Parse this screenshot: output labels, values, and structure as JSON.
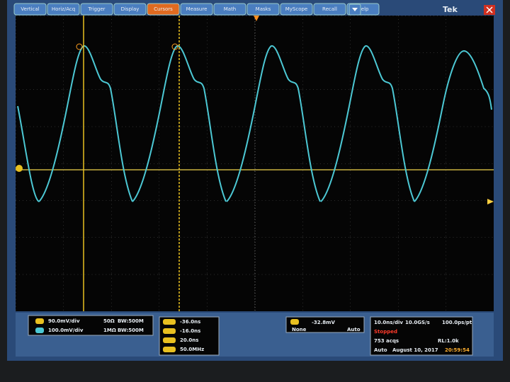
{
  "menu": {
    "tabs": [
      "Vertical",
      "Horiz/Acq",
      "Trigger",
      "Display",
      "Cursors",
      "Measure",
      "Math",
      "Masks",
      "MyScope",
      "Recall",
      "Help"
    ],
    "active": "Cursors",
    "brand": "Tek"
  },
  "channels": [
    {
      "scale": "90.0mV/div",
      "impedance": "50Ω",
      "bandwidth": "BW:500M"
    },
    {
      "scale": "100.0mV/div",
      "impedance": "1MΩ",
      "bandwidth": "BW:500M"
    }
  ],
  "cursors": [
    "-36.0ns",
    "-16.0ns",
    "20.0ns",
    "50.0MHz"
  ],
  "trigger": {
    "level": "-32.8mV",
    "coupling": "None",
    "mode": "Auto"
  },
  "acquisition": {
    "horizontal": "10.0ns/div",
    "sample_rate": "10.0GS/s",
    "resolution": "100.0ps/pt",
    "state": "Stopped",
    "count": "753 acqs",
    "record_length": "RL:1.0k",
    "mode": "Auto",
    "date": "August 10, 2017",
    "time": "20:59:54"
  }
}
